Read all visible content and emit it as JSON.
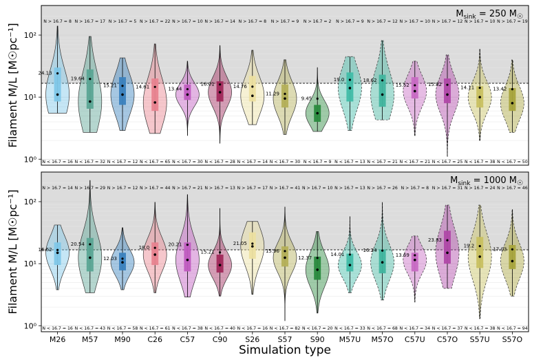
{
  "chart_data": {
    "type": "violin",
    "xlabel": "Simulation type",
    "ylabel": "Filament M/L [M☉pc⁻¹]",
    "yscale": "log",
    "ylim": [
      0.8,
      300
    ],
    "threshold": 16.7,
    "categories": [
      "M26",
      "M57",
      "M90",
      "C26",
      "C57",
      "C90",
      "S26",
      "S57",
      "S90",
      "M57U",
      "M57O",
      "C57U",
      "C57O",
      "S57U",
      "S57O"
    ],
    "colors": [
      "#7fc7e8",
      "#5aa594",
      "#3a82be",
      "#e8838f",
      "#c05cc0",
      "#a0285a",
      "#ecdfa0",
      "#b4b058",
      "#2a8a3e",
      "#40bca8",
      "#40b49e",
      "#c86ac4",
      "#b048a8",
      "#c8c060",
      "#a8a43c"
    ],
    "panels": [
      {
        "title": "M_sink = 250 M☉",
        "title_main": "M",
        "title_sub": "sink",
        "title_rest": " = 250 M",
        "means": [
          24.13,
          19.64,
          15.21,
          14.61,
          13.44,
          16.01,
          14.76,
          11.29,
          9.45,
          19.0,
          18.62,
          15.52,
          15.82,
          14.11,
          13.42
        ],
        "mean_labels": [
          "24.13",
          "19.64",
          "15.21",
          "14.61",
          "13.44",
          "16.01",
          "14.76",
          "11.29",
          "9.45",
          "19.0",
          "18.62",
          "15.52",
          "15.82",
          "14.11",
          "13.42"
        ],
        "n_above": [
          8,
          17,
          5,
          22,
          10,
          14,
          8,
          9,
          2,
          9,
          12,
          10,
          12,
          10,
          19
        ],
        "n_below": [
          16,
          32,
          12,
          65,
          30,
          28,
          14,
          30,
          9,
          13,
          21,
          21,
          25,
          38,
          50
        ],
        "above_labels": [
          "N > 16.7 = 8",
          "N > 16.7 = 17",
          "N > 16.7 = 5",
          "N > 16.7 = 22",
          "N > 16.7 = 10",
          "N > 16.7 = 14",
          "N > 16.7 = 8",
          "N > 16.7 = 9",
          "N > 16.7 = 2",
          "N > 16.7 = 9",
          "N > 16.7 = 12",
          "N > 16.7 = 10",
          "N > 16.7 = 12",
          "N > 16.7 = 10",
          "N > 16.7 = 19"
        ],
        "below_labels": [
          "N < 16.7 = 16",
          "N < 16.7 = 32",
          "N < 16.7 = 12",
          "N < 16.7 = 65",
          "N < 16.7 = 30",
          "N < 16.7 = 28",
          "N < 16.7 = 14",
          "N < 16.7 = 30",
          "N < 16.7 = 9",
          "N < 16.7 = 13",
          "N < 16.7 = 21",
          "N < 16.7 = 21",
          "N < 16.7 = 25",
          "N < 16.7 = 38",
          "N < 16.7 = 50"
        ],
        "medians": [
          11,
          8.5,
          11,
          8.2,
          11,
          12,
          10.5,
          9.5,
          5.5,
          14,
          11,
          12.5,
          11,
          10,
          8
        ],
        "q1": [
          8.5,
          6.5,
          7.5,
          6.0,
          9.0,
          8.5,
          8.5,
          6.8,
          4.0,
          8.5,
          7.0,
          9.5,
          8.0,
          6.8,
          6.0
        ],
        "q3": [
          30,
          28,
          21,
          20,
          16,
          18,
          22,
          16,
          7.5,
          25,
          23,
          21,
          20,
          15,
          14
        ],
        "mins": [
          5.5,
          2.7,
          2.9,
          2.6,
          2.4,
          1.8,
          3.6,
          2.5,
          2.8,
          2.9,
          4.3,
          2.4,
          1.1,
          2.0,
          2.7
        ],
        "maxs": [
          140,
          95,
          43,
          72,
          38,
          68,
          57,
          40,
          30,
          45,
          82,
          38,
          48,
          60,
          40
        ]
      },
      {
        "title": "M_sink = 1000 M☉",
        "title_main": "M",
        "title_sub": "sink",
        "title_rest": " = 1000 M",
        "means": [
          16.62,
          20.54,
          12.03,
          18.0,
          20.21,
          15.21,
          21.05,
          15.96,
          12.37,
          14.01,
          16.24,
          13.69,
          23.83,
          19.2,
          17.03
        ],
        "mean_labels": [
          "16.62",
          "20.54",
          "12.03",
          "18.0",
          "20.21",
          "15.21",
          "21.05",
          "15.96",
          "12.37",
          "14.01",
          "16.24",
          "13.69",
          "23.83",
          "19.2",
          "17.03"
        ],
        "n_above": [
          14,
          29,
          12,
          44,
          21,
          13,
          17,
          41,
          10,
          13,
          26,
          8,
          31,
          24,
          46
        ],
        "n_below": [
          16,
          43,
          58,
          61,
          38,
          40,
          16,
          82,
          20,
          33,
          68,
          34,
          37,
          38,
          94
        ],
        "above_labels": [
          "N > 16.7 = 14",
          "N > 16.7 = 29",
          "N > 16.7 = 12",
          "N > 16.7 = 44",
          "N > 16.7 = 21",
          "N > 16.7 = 13",
          "N > 16.7 = 17",
          "N > 16.7 = 41",
          "N > 16.7 = 10",
          "N > 16.7 = 13",
          "N > 16.7 = 26",
          "N > 16.7 = 8",
          "N > 16.7 = 31",
          "N > 16.7 = 24",
          "N > 16.7 = 46"
        ],
        "below_labels": [
          "N < 16.7 = 16",
          "N < 16.7 = 43",
          "N < 16.7 = 58",
          "N < 16.7 = 61",
          "N < 16.7 = 38",
          "N < 16.7 = 40",
          "N < 16.7 = 16",
          "N < 16.7 = 82",
          "N < 16.7 = 20",
          "N < 16.7 = 33",
          "N < 16.7 = 68",
          "N < 16.7 = 34",
          "N < 16.7 = 37",
          "N < 16.7 = 38",
          "N < 16.7 = 94"
        ],
        "medians": [
          15,
          12.5,
          10.5,
          14,
          11.5,
          9.5,
          19,
          12.5,
          8,
          9.5,
          10.5,
          11.5,
          15,
          13,
          11
        ],
        "q1": [
          9.5,
          7.5,
          7.8,
          9.5,
          7.5,
          7.2,
          12,
          9.0,
          5.5,
          7.5,
          7.0,
          7.5,
          10,
          8.5,
          8.2
        ],
        "q3": [
          22,
          26,
          15,
          22,
          22,
          14,
          32,
          19,
          13,
          14.5,
          17,
          15,
          34,
          27,
          20
        ],
        "mins": [
          3.8,
          3.4,
          3.8,
          3.4,
          2.9,
          3.0,
          3.2,
          1.2,
          1.6,
          3.4,
          2.6,
          2.4,
          4.0,
          1.3,
          3.0
        ],
        "maxs": [
          42,
          220,
          38,
          98,
          130,
          78,
          48,
          82,
          33,
          58,
          98,
          28,
          88,
          88,
          75
        ]
      }
    ],
    "yticks": [
      "10⁰",
      "10¹",
      "10²"
    ],
    "ytick_values": [
      1,
      10,
      100
    ]
  }
}
